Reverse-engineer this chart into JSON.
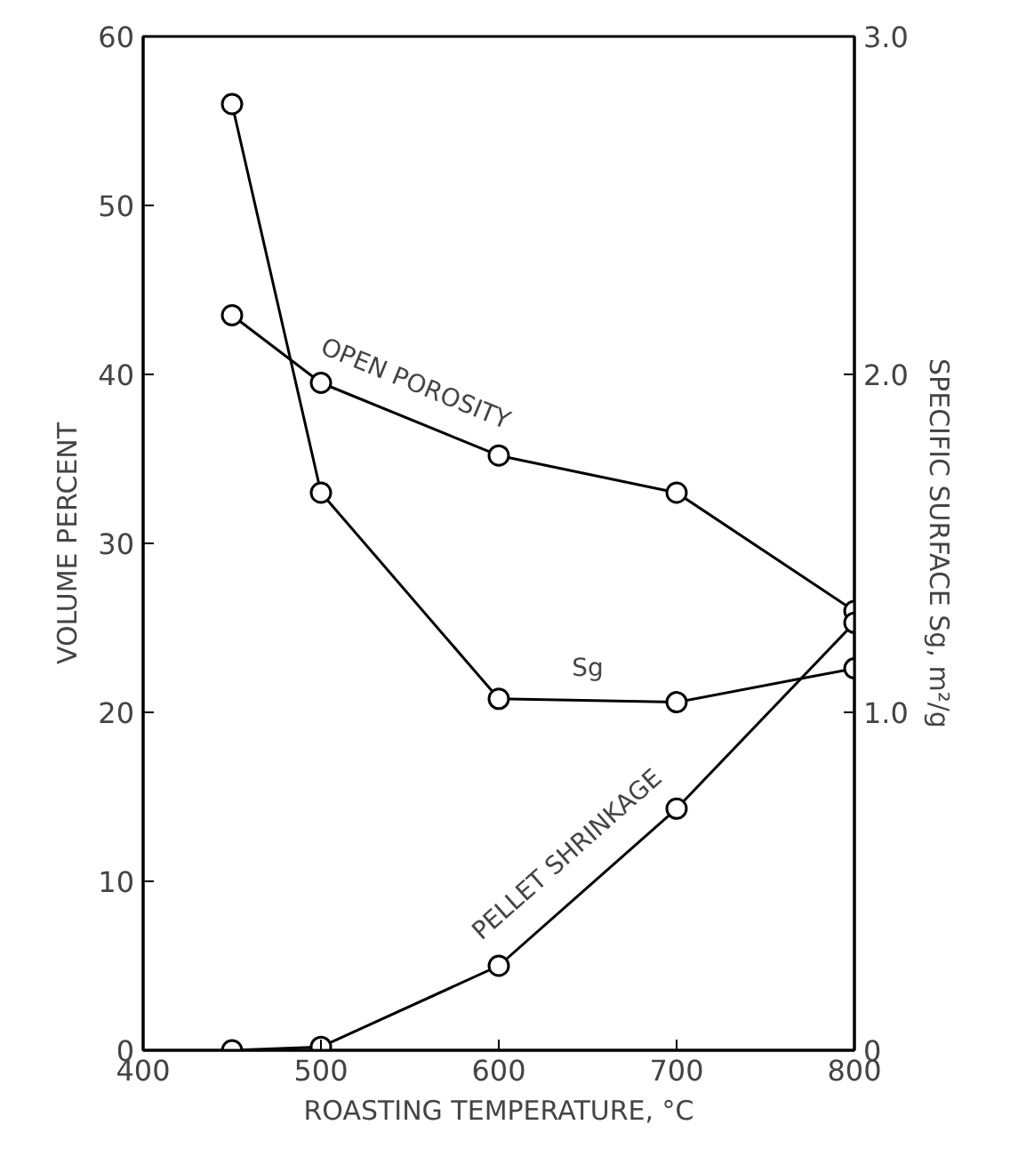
{
  "chart_data": {
    "type": "line",
    "xlabel": "ROASTING TEMPERATURE, °C",
    "ylabel": "VOLUME PERCENT",
    "y2label": "SPECIFIC SURFACE Sg, m²/g",
    "x": [
      450,
      500,
      600,
      700,
      800
    ],
    "series": [
      {
        "name": "OPEN POROSITY",
        "color": "#000000",
        "values": [
          43.5,
          39.5,
          35.2,
          33.0,
          26.0
        ]
      },
      {
        "name": "Sg",
        "color": "#000000",
        "axis": "y2",
        "values": [
          2.8,
          1.65,
          1.04,
          1.03,
          1.13
        ]
      },
      {
        "name": "PELLET SHRINKAGE",
        "color": "#000000",
        "values": [
          0,
          0.2,
          5.0,
          14.3,
          25.3
        ]
      }
    ],
    "xlim": [
      400,
      800
    ],
    "xticks": [
      400,
      500,
      600,
      700,
      800
    ],
    "ylim": [
      0,
      60
    ],
    "yticks": [
      0,
      10,
      20,
      30,
      40,
      50,
      60
    ],
    "y2lim": [
      0,
      3
    ],
    "y2ticks": [
      0,
      {
        "value": 1,
        "label": "1.0"
      },
      {
        "value": 2,
        "label": "2.0"
      },
      {
        "value": 3,
        "label": "3.0"
      }
    ],
    "marker": "circle",
    "line_style": "solid",
    "grid": false
  }
}
